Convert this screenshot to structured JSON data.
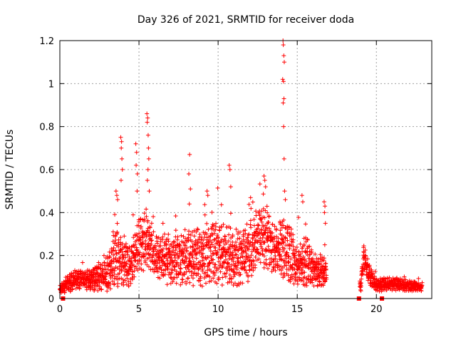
{
  "chart_data": {
    "type": "scatter",
    "title": "Day 326 of 2021, SRMTID for receiver doda",
    "xlabel": "GPS time / hours",
    "ylabel": "SRMTID / TECUs",
    "xlim": [
      0,
      23.5
    ],
    "ylim": [
      0,
      1.2
    ],
    "xticks": [
      0,
      5,
      10,
      15,
      20
    ],
    "xtick_labels": [
      "0",
      "5",
      "10",
      "15",
      "20"
    ],
    "yticks": [
      0,
      0.2,
      0.4,
      0.6,
      0.8,
      1.0,
      1.2
    ],
    "ytick_labels": [
      "0",
      "0.2",
      "0.4",
      "0.6",
      "0.8",
      "1",
      "1.2"
    ],
    "grid": true,
    "marker": "plus",
    "color": "#ff0000",
    "envelope": [
      {
        "x": 0.0,
        "base": 0.04,
        "spread": 0.02
      },
      {
        "x": 0.5,
        "base": 0.07,
        "spread": 0.04
      },
      {
        "x": 1.0,
        "base": 0.09,
        "spread": 0.05
      },
      {
        "x": 2.0,
        "base": 0.09,
        "spread": 0.05
      },
      {
        "x": 2.5,
        "base": 0.1,
        "spread": 0.07
      },
      {
        "x": 3.0,
        "base": 0.11,
        "spread": 0.08
      },
      {
        "x": 3.5,
        "base": 0.2,
        "spread": 0.15
      },
      {
        "x": 4.0,
        "base": 0.18,
        "spread": 0.13
      },
      {
        "x": 4.5,
        "base": 0.15,
        "spread": 0.1
      },
      {
        "x": 5.0,
        "base": 0.25,
        "spread": 0.12
      },
      {
        "x": 5.5,
        "base": 0.28,
        "spread": 0.14
      },
      {
        "x": 6.0,
        "base": 0.2,
        "spread": 0.1
      },
      {
        "x": 7.0,
        "base": 0.18,
        "spread": 0.12
      },
      {
        "x": 8.0,
        "base": 0.19,
        "spread": 0.13
      },
      {
        "x": 9.0,
        "base": 0.2,
        "spread": 0.14
      },
      {
        "x": 10.0,
        "base": 0.22,
        "spread": 0.15
      },
      {
        "x": 11.0,
        "base": 0.18,
        "spread": 0.13
      },
      {
        "x": 12.0,
        "base": 0.22,
        "spread": 0.14
      },
      {
        "x": 12.5,
        "base": 0.3,
        "spread": 0.12
      },
      {
        "x": 13.0,
        "base": 0.28,
        "spread": 0.16
      },
      {
        "x": 13.5,
        "base": 0.22,
        "spread": 0.13
      },
      {
        "x": 14.0,
        "base": 0.25,
        "spread": 0.15
      },
      {
        "x": 14.5,
        "base": 0.22,
        "spread": 0.15
      },
      {
        "x": 15.0,
        "base": 0.15,
        "spread": 0.1
      },
      {
        "x": 15.5,
        "base": 0.18,
        "spread": 0.12
      },
      {
        "x": 16.0,
        "base": 0.13,
        "spread": 0.08
      },
      {
        "x": 16.8,
        "base": 0.12,
        "spread": 0.07
      },
      {
        "x": 19.0,
        "base": 0.05,
        "spread": 0.03
      },
      {
        "x": 19.2,
        "base": 0.2,
        "spread": 0.05
      },
      {
        "x": 19.5,
        "base": 0.12,
        "spread": 0.06
      },
      {
        "x": 20.0,
        "base": 0.06,
        "spread": 0.03
      },
      {
        "x": 21.0,
        "base": 0.07,
        "spread": 0.03
      },
      {
        "x": 22.0,
        "base": 0.06,
        "spread": 0.025
      },
      {
        "x": 22.9,
        "base": 0.055,
        "spread": 0.02
      }
    ],
    "segments": [
      [
        0.0,
        16.85
      ],
      [
        18.95,
        22.9
      ]
    ],
    "step_hours": 0.0083,
    "spikes": [
      {
        "x": 3.55,
        "y": 0.5
      },
      {
        "x": 3.6,
        "y": 0.48
      },
      {
        "x": 3.65,
        "y": 0.46
      },
      {
        "x": 3.85,
        "y": 0.75
      },
      {
        "x": 3.9,
        "y": 0.73
      },
      {
        "x": 3.88,
        "y": 0.7
      },
      {
        "x": 3.92,
        "y": 0.65
      },
      {
        "x": 3.95,
        "y": 0.6
      },
      {
        "x": 3.87,
        "y": 0.55
      },
      {
        "x": 4.8,
        "y": 0.72
      },
      {
        "x": 4.85,
        "y": 0.68
      },
      {
        "x": 4.82,
        "y": 0.62
      },
      {
        "x": 4.9,
        "y": 0.58
      },
      {
        "x": 4.88,
        "y": 0.5
      },
      {
        "x": 5.5,
        "y": 0.86
      },
      {
        "x": 5.55,
        "y": 0.84
      },
      {
        "x": 5.52,
        "y": 0.82
      },
      {
        "x": 5.58,
        "y": 0.76
      },
      {
        "x": 5.6,
        "y": 0.7
      },
      {
        "x": 5.62,
        "y": 0.65
      },
      {
        "x": 5.57,
        "y": 0.6
      },
      {
        "x": 5.53,
        "y": 0.55
      },
      {
        "x": 5.65,
        "y": 0.5
      },
      {
        "x": 8.2,
        "y": 0.67
      },
      {
        "x": 8.15,
        "y": 0.58
      },
      {
        "x": 8.25,
        "y": 0.51
      },
      {
        "x": 8.18,
        "y": 0.44
      },
      {
        "x": 9.3,
        "y": 0.5
      },
      {
        "x": 9.35,
        "y": 0.48
      },
      {
        "x": 10.7,
        "y": 0.62
      },
      {
        "x": 10.75,
        "y": 0.6
      },
      {
        "x": 10.8,
        "y": 0.52
      },
      {
        "x": 12.9,
        "y": 0.57
      },
      {
        "x": 12.95,
        "y": 0.55
      },
      {
        "x": 13.0,
        "y": 0.52
      },
      {
        "x": 14.1,
        "y": 1.2
      },
      {
        "x": 14.12,
        "y": 1.18
      },
      {
        "x": 14.15,
        "y": 1.13
      },
      {
        "x": 14.18,
        "y": 1.1
      },
      {
        "x": 14.08,
        "y": 1.02
      },
      {
        "x": 14.13,
        "y": 1.01
      },
      {
        "x": 14.16,
        "y": 0.93
      },
      {
        "x": 14.11,
        "y": 0.91
      },
      {
        "x": 14.14,
        "y": 0.8
      },
      {
        "x": 14.17,
        "y": 0.65
      },
      {
        "x": 14.2,
        "y": 0.5
      },
      {
        "x": 14.25,
        "y": 0.46
      },
      {
        "x": 15.3,
        "y": 0.48
      },
      {
        "x": 15.35,
        "y": 0.45
      },
      {
        "x": 16.7,
        "y": 0.45
      },
      {
        "x": 16.75,
        "y": 0.43
      },
      {
        "x": 16.72,
        "y": 0.4
      },
      {
        "x": 16.78,
        "y": 0.35
      },
      {
        "x": 16.74,
        "y": 0.25
      }
    ],
    "baseline_markers": [
      {
        "x": 0.2,
        "y": 0.0
      },
      {
        "x": 18.9,
        "y": 0.0
      },
      {
        "x": 20.35,
        "y": 0.0
      }
    ]
  }
}
